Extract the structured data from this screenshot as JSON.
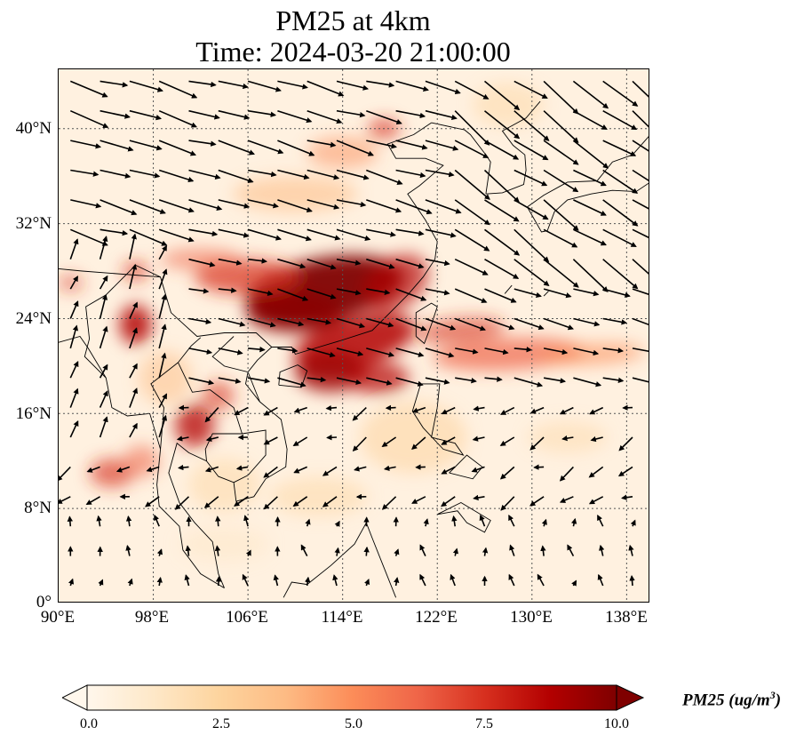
{
  "title": {
    "line1": "PM25 at 4km",
    "line2": "Time: 2024-03-20 21:00:00"
  },
  "map": {
    "extent": {
      "lon": [
        90,
        140
      ],
      "lat": [
        0,
        45
      ]
    },
    "gridlines": "dotted",
    "lat_ticks": [
      "40°N",
      "32°N",
      "24°N",
      "16°N",
      "8°N",
      "0°"
    ],
    "lon_ticks": [
      "90°E",
      "98°E",
      "106°E",
      "114°E",
      "122°E",
      "130°E",
      "138°E"
    ],
    "field": "PM25",
    "overlay": "wind vectors",
    "high_regions": [
      "southern China",
      "Gulf of Tonkin",
      "northern Myanmar",
      "Cambodia/Thailand",
      "plume east past Taiwan"
    ]
  },
  "colorbar": {
    "cmap": "OrRd",
    "ticks": [
      "0.0",
      "2.5",
      "5.0",
      "7.5",
      "10.0"
    ],
    "range": [
      0,
      10
    ],
    "extend": "both",
    "label_main": "PM25 (ug/m",
    "label_sup": "3",
    "label_end": ")",
    "colors": [
      "#fff7ec",
      "#fee8c8",
      "#fdd49e",
      "#fdbb84",
      "#fc8d59",
      "#ef6548",
      "#d7301f",
      "#b30000",
      "#7f0000"
    ]
  }
}
